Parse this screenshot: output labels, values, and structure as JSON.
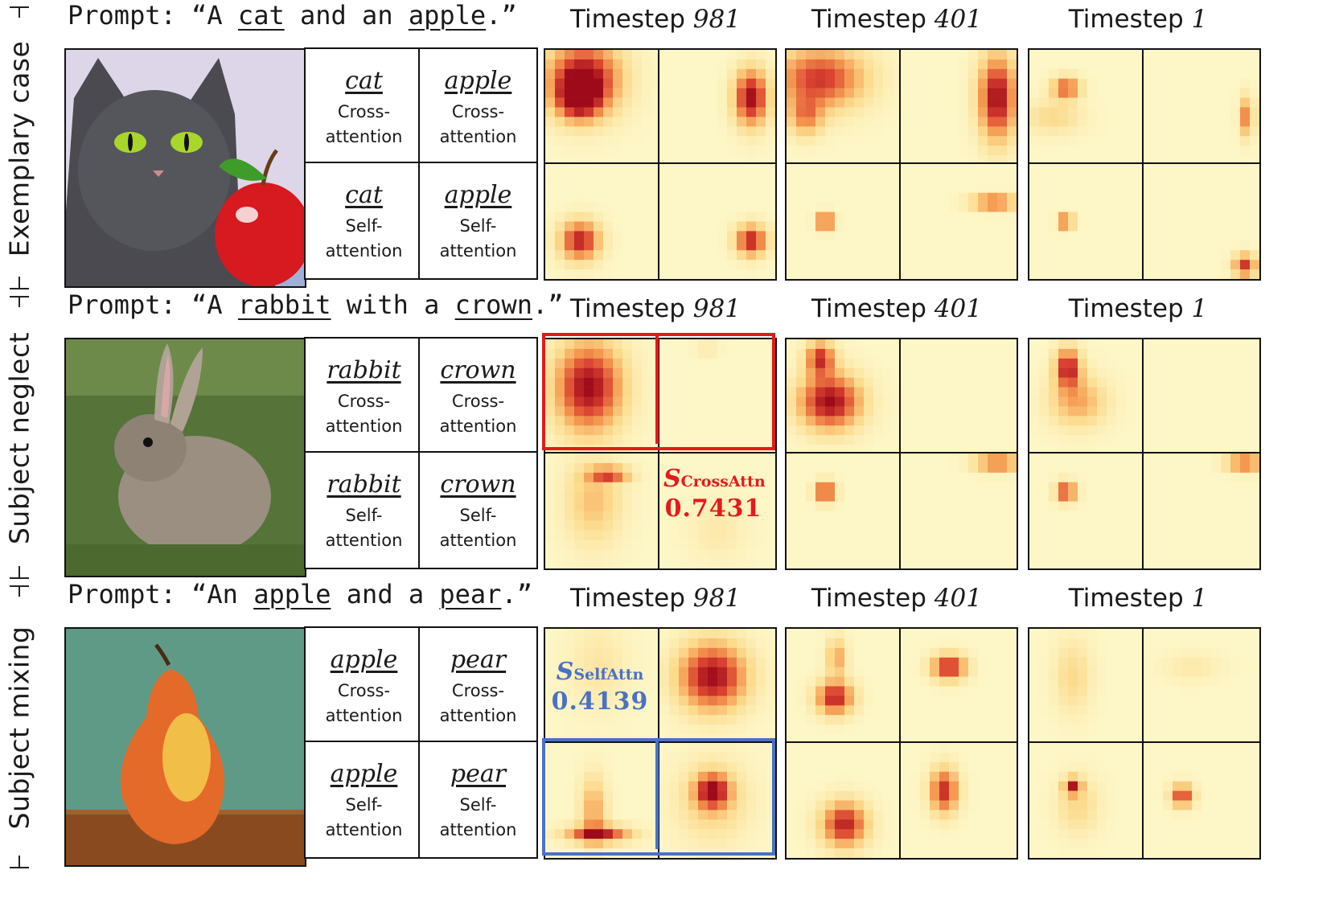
{
  "colors": {
    "red_highlight": "#e41a1c",
    "blue_highlight": "#4a72c4",
    "map_bg": "#fdf6c6",
    "map_hot": "#9e0a1a"
  },
  "bands": [
    {
      "side_label": "Exemplary case",
      "prompt": {
        "lead": "Prompt: “A ",
        "w1": "cat",
        "mid": " and an ",
        "w2": "apple",
        "tail": ".”"
      },
      "tokens": [
        "cat",
        "apple"
      ],
      "timesteps": [
        "981",
        "401",
        "1"
      ],
      "timestep_word": "Timestep"
    },
    {
      "side_label": "Subject neglect",
      "prompt": {
        "lead": "Prompt: “A ",
        "w1": "rabbit",
        "mid": " with a ",
        "w2": "crown",
        "tail": ".”"
      },
      "tokens": [
        "rabbit",
        "crown"
      ],
      "timesteps": [
        "981",
        "401",
        "1"
      ],
      "timestep_word": "Timestep",
      "score": {
        "symbol": "S",
        "subscript": "CrossAttn",
        "value": "0.7431"
      }
    },
    {
      "side_label": "Subject mixing",
      "prompt": {
        "lead": "Prompt: “An ",
        "w1": "apple",
        "mid": " and a ",
        "w2": "pear",
        "tail": ".”"
      },
      "tokens": [
        "apple",
        "pear"
      ],
      "timesteps": [
        "981",
        "401",
        "1"
      ],
      "timestep_word": "Timestep",
      "score": {
        "symbol": "S",
        "subscript": "SelfAttn",
        "value": "0.4139"
      }
    }
  ],
  "attention_kinds": [
    "Cross-attention",
    "Self-attention"
  ]
}
